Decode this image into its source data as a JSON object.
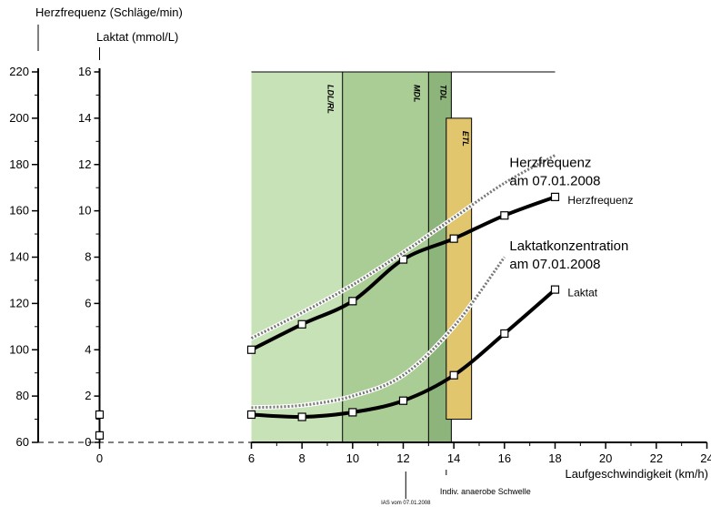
{
  "chart_data": {
    "type": "line",
    "xlabel": "Laufgeschwindigkeit (km/h)",
    "ylabel_hr": "Herzfrequenz (Schläge/min)",
    "ylabel_lactate": "Laktat (mmol/L)",
    "xlim": [
      0,
      24
    ],
    "x_ticks": [
      0,
      6,
      8,
      10,
      12,
      14,
      16,
      18,
      20,
      22,
      24
    ],
    "x_ticks_labels": [
      "0",
      "6",
      "8",
      "10",
      "12",
      "14",
      "16",
      "18",
      "20",
      "22",
      "24"
    ],
    "hr_lim": [
      60,
      220
    ],
    "hr_ticks": [
      60,
      80,
      100,
      120,
      140,
      160,
      180,
      200,
      220
    ],
    "lactate_lim": [
      0,
      16
    ],
    "lactate_ticks": [
      0,
      2,
      4,
      6,
      8,
      10,
      12,
      14,
      16
    ],
    "zones": [
      {
        "name": "LDL/RL",
        "x_from": 6,
        "x_to": 9.6,
        "color": "#c8e2b8"
      },
      {
        "name": "MDL",
        "x_from": 9.6,
        "x_to": 13.0,
        "color": "#a9cd94"
      },
      {
        "name": "TDL",
        "x_from": 13.0,
        "x_to": 13.9,
        "color": "#8db47a"
      }
    ],
    "zone_top_lactate": 16,
    "zone_line_x_to": 18,
    "etl_box": {
      "name": "ETL",
      "x_from": 13.7,
      "x_to": 14.7,
      "lactate_from": 1.0,
      "lactate_to": 14.0,
      "color": "#e2c66e"
    },
    "series": [
      {
        "name": "Herzfrequenz",
        "axis": "hr",
        "style": "solid",
        "x": [
          0,
          6,
          8,
          10,
          12,
          14,
          16,
          18
        ],
        "y": [
          72,
          100,
          111,
          121,
          139,
          148,
          158,
          166
        ]
      },
      {
        "name": "Laktat",
        "axis": "lactate",
        "style": "solid",
        "x": [
          0,
          6,
          8,
          10,
          12,
          14,
          16,
          18
        ],
        "y": [
          0.3,
          1.2,
          1.1,
          1.3,
          1.8,
          2.9,
          4.7,
          6.6
        ]
      },
      {
        "name": "Herzfrequenz am 07.01.2008",
        "axis": "hr",
        "style": "dotted",
        "x": [
          6,
          8,
          10,
          12,
          14,
          16,
          18
        ],
        "y": [
          105,
          116,
          128,
          142,
          157,
          172,
          184
        ]
      },
      {
        "name": "Laktatkonzentration am 07.01.2008",
        "axis": "lactate",
        "style": "dotted",
        "x": [
          6,
          8,
          10,
          12,
          14,
          16
        ],
        "y": [
          1.5,
          1.6,
          2.0,
          2.9,
          5.0,
          8.0
        ]
      }
    ],
    "annotations": [
      {
        "text": "Herzfrequenz",
        "x": 18.5,
        "y_lactate": 10.3
      },
      {
        "text": "Laktat",
        "x": 18.5,
        "y_lactate": 6.3
      },
      {
        "text": "Herzfrequenz",
        "x": 16.2,
        "y_lactate": 11.9
      },
      {
        "text": "am 07.01.2008",
        "x": 16.2,
        "y_lactate": 11.1
      },
      {
        "text": "Laktatkonzentration",
        "x": 16.2,
        "y_lactate": 8.3
      },
      {
        "text": "am 07.01.2008",
        "x": 16.2,
        "y_lactate": 7.5
      }
    ],
    "marker_ias": {
      "x": 12.1,
      "label": "IAS vom 07.01.2008"
    },
    "marker_schwelle": {
      "x": 13.7,
      "label": "Indiv. anaerobe Schwelle"
    }
  }
}
